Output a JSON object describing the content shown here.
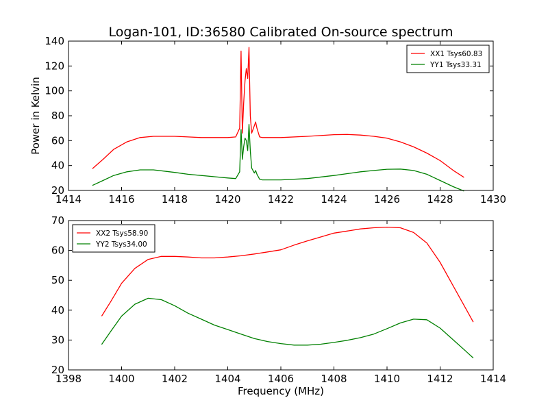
{
  "figure": {
    "title": "Logan-101, ID:36580 Calibrated On-source spectrum",
    "xlabel": "Frequency (MHz)",
    "ylabel": "Power in Kelvin"
  },
  "chart_data": [
    {
      "type": "line",
      "xlim": [
        1414,
        1430
      ],
      "ylim": [
        20,
        140
      ],
      "xticks": [
        1414,
        1416,
        1418,
        1420,
        1422,
        1424,
        1426,
        1428,
        1430
      ],
      "yticks": [
        20,
        40,
        60,
        80,
        100,
        120,
        140
      ],
      "legend_position": "top-right",
      "grid": false,
      "series": [
        {
          "name": "XX1 Tsys60.83",
          "color": "#ff0000",
          "x": [
            1414.9,
            1415.3,
            1415.7,
            1416.2,
            1416.7,
            1417.2,
            1417.6,
            1418.0,
            1418.5,
            1419.0,
            1419.5,
            1420.0,
            1420.3,
            1420.45,
            1420.5,
            1420.55,
            1420.6,
            1420.65,
            1420.7,
            1420.75,
            1420.8,
            1420.85,
            1420.9,
            1421.0,
            1421.05,
            1421.1,
            1421.2,
            1421.3,
            1422.0,
            1423.0,
            1424.0,
            1424.5,
            1425.0,
            1425.5,
            1426.0,
            1426.5,
            1427.0,
            1427.5,
            1428.0,
            1428.5,
            1428.9
          ],
          "y": [
            37.5,
            45,
            53,
            59,
            62.5,
            63.5,
            63.5,
            63.5,
            63,
            62.5,
            62.5,
            62.5,
            63,
            70,
            132,
            66,
            90,
            108,
            118,
            110,
            135,
            80,
            66,
            72,
            75,
            70,
            63,
            62.5,
            62.5,
            63.5,
            64.8,
            65,
            64.5,
            63.5,
            62,
            59,
            55,
            50,
            44,
            36,
            30.5
          ]
        },
        {
          "name": "YY1 Tsys33.31",
          "color": "#008000",
          "x": [
            1414.9,
            1415.3,
            1415.7,
            1416.2,
            1416.7,
            1417.2,
            1417.6,
            1418.0,
            1418.5,
            1419.0,
            1419.5,
            1420.0,
            1420.3,
            1420.45,
            1420.5,
            1420.55,
            1420.6,
            1420.65,
            1420.7,
            1420.75,
            1420.8,
            1420.85,
            1420.9,
            1421.0,
            1421.05,
            1421.1,
            1421.2,
            1421.3,
            1422.0,
            1423.0,
            1424.0,
            1424.5,
            1425.0,
            1425.5,
            1426.0,
            1426.5,
            1427.0,
            1427.5,
            1428.0,
            1428.5,
            1428.9
          ],
          "y": [
            24,
            28,
            32,
            35,
            36.5,
            36.5,
            35.5,
            34.5,
            33,
            32,
            31,
            30,
            29.5,
            35,
            69,
            45,
            55,
            62,
            60,
            52,
            73,
            52,
            38,
            34,
            36,
            33,
            29,
            28.5,
            28.5,
            29.5,
            32,
            33.5,
            35,
            36,
            37,
            37.2,
            36,
            33,
            28,
            23,
            19.5
          ]
        }
      ]
    },
    {
      "type": "line",
      "xlim": [
        1398,
        1414
      ],
      "ylim": [
        20,
        70
      ],
      "xticks": [
        1398,
        1400,
        1402,
        1404,
        1406,
        1408,
        1410,
        1412,
        1414
      ],
      "yticks": [
        20,
        30,
        40,
        50,
        60,
        70
      ],
      "legend_position": "top-left",
      "grid": false,
      "series": [
        {
          "name": "XX2 Tsys58.90",
          "color": "#ff0000",
          "x": [
            1399.25,
            1399.6,
            1400.0,
            1400.5,
            1401.0,
            1401.5,
            1402.0,
            1402.5,
            1403.0,
            1403.5,
            1404.0,
            1404.5,
            1405.0,
            1405.5,
            1406.0,
            1406.5,
            1407.0,
            1407.5,
            1408.0,
            1408.5,
            1409.0,
            1409.5,
            1410.0,
            1410.5,
            1411.0,
            1411.5,
            1412.0,
            1412.5,
            1413.0,
            1413.25
          ],
          "y": [
            38,
            43,
            49,
            54,
            57,
            58,
            58,
            57.8,
            57.5,
            57.5,
            57.8,
            58.2,
            58.8,
            59.5,
            60.2,
            61.8,
            63.2,
            64.5,
            65.8,
            66.5,
            67.2,
            67.6,
            67.8,
            67.6,
            66,
            62.5,
            56,
            48,
            40,
            36
          ]
        },
        {
          "name": "YY2 Tsys34.00",
          "color": "#008000",
          "x": [
            1399.25,
            1399.6,
            1400.0,
            1400.5,
            1401.0,
            1401.5,
            1402.0,
            1402.5,
            1403.0,
            1403.5,
            1404.0,
            1404.5,
            1405.0,
            1405.5,
            1406.0,
            1406.5,
            1407.0,
            1407.5,
            1408.0,
            1408.5,
            1409.0,
            1409.5,
            1410.0,
            1410.5,
            1411.0,
            1411.5,
            1412.0,
            1412.5,
            1413.0,
            1413.25
          ],
          "y": [
            28.5,
            33,
            38,
            42,
            44,
            43.5,
            41.5,
            39,
            37,
            35,
            33.5,
            32,
            30.5,
            29.5,
            28.8,
            28.3,
            28.3,
            28.6,
            29.2,
            29.9,
            30.8,
            32,
            33.8,
            35.7,
            37,
            36.8,
            34,
            30,
            26,
            24
          ]
        }
      ]
    }
  ]
}
